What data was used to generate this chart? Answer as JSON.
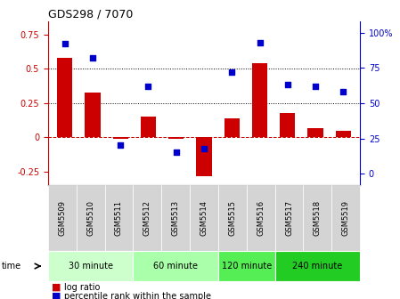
{
  "title": "GDS298 / 7070",
  "samples": [
    "GSM5509",
    "GSM5510",
    "GSM5511",
    "GSM5512",
    "GSM5513",
    "GSM5514",
    "GSM5515",
    "GSM5516",
    "GSM5517",
    "GSM5518",
    "GSM5519"
  ],
  "log_ratio": [
    0.58,
    0.33,
    -0.01,
    0.15,
    -0.01,
    -0.28,
    0.14,
    0.54,
    0.18,
    0.07,
    0.05
  ],
  "percentile": [
    92,
    82,
    20,
    62,
    15,
    18,
    72,
    93,
    63,
    62,
    58
  ],
  "bar_color": "#cc0000",
  "dot_color": "#0000cc",
  "ylim_left": [
    -0.35,
    0.85
  ],
  "ylim_right": [
    -8.33,
    108.33
  ],
  "yticks_left": [
    -0.25,
    0.0,
    0.25,
    0.5,
    0.75
  ],
  "ytick_labels_left": [
    "-0.25",
    "0",
    "0.25",
    "0.5",
    "0.75"
  ],
  "yticks_right": [
    0,
    25,
    50,
    75,
    100
  ],
  "ytick_labels_right": [
    "0",
    "25",
    "50",
    "75",
    "100%"
  ],
  "hline_y": [
    0.25,
    0.5
  ],
  "zero_line_y": 0.0,
  "groups": [
    {
      "label": "30 minute",
      "start": 0,
      "end": 2,
      "color": "#ccffcc"
    },
    {
      "label": "60 minute",
      "start": 3,
      "end": 5,
      "color": "#aaffaa"
    },
    {
      "label": "120 minute",
      "start": 6,
      "end": 7,
      "color": "#55ee55"
    },
    {
      "label": "240 minute",
      "start": 8,
      "end": 10,
      "color": "#22cc22"
    }
  ],
  "time_label": "time",
  "legend_items": [
    {
      "label": "log ratio",
      "color": "#cc0000"
    },
    {
      "label": "percentile rank within the sample",
      "color": "#0000cc"
    }
  ],
  "bar_width": 0.55,
  "bg_color": "#ffffff",
  "sample_box_color": "#d4d4d4",
  "title_fontsize": 9,
  "tick_fontsize": 7,
  "sample_fontsize": 6,
  "group_fontsize": 7,
  "legend_fontsize": 7
}
